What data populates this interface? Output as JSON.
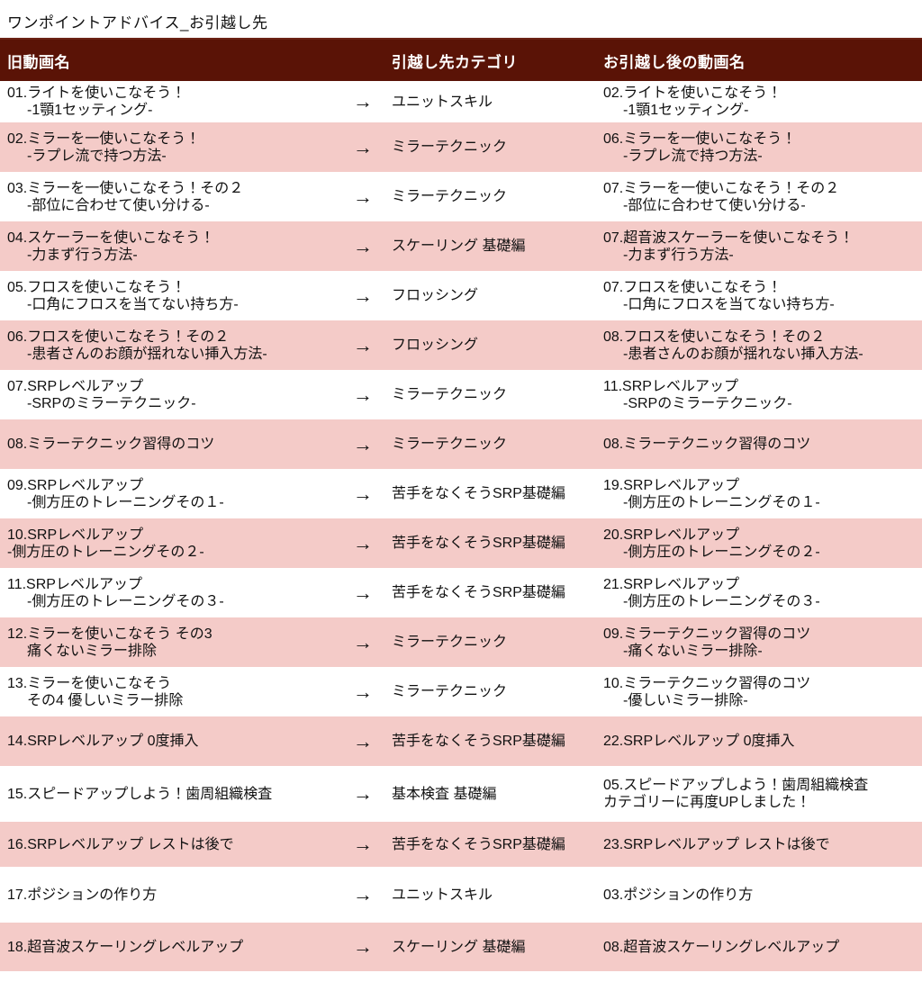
{
  "page": {
    "title": "ワンポイントアドバイス_お引越し先"
  },
  "colors": {
    "header_bg": "#5A1306",
    "header_text": "#FFFFFF",
    "row_alt_bg": "#F4CBC8",
    "body_text": "#111111"
  },
  "table": {
    "arrow_glyph": "→",
    "headers": {
      "old": "旧動画名",
      "category": "引越し先カテゴリ",
      "new": "お引越し後の動画名"
    },
    "rows": [
      {
        "old": [
          {
            "t": "01.ライトを使いこなそう！"
          },
          {
            "t": "-1顎1セッティング-",
            "i": true
          }
        ],
        "category": "ユニットスキル",
        "new": [
          {
            "t": "02.ライトを使いこなそう！"
          },
          {
            "t": "-1顎1セッティング-",
            "i": true
          }
        ]
      },
      {
        "old": [
          {
            "t": "02.ミラーを一使いこなそう！"
          },
          {
            "t": "-ラプレ流で持つ方法-",
            "i": true
          }
        ],
        "category": "ミラーテクニック",
        "new": [
          {
            "t": "06.ミラーを一使いこなそう！"
          },
          {
            "t": "-ラプレ流で持つ方法-",
            "i": true
          }
        ]
      },
      {
        "old": [
          {
            "t": "03.ミラーを一使いこなそう！その２"
          },
          {
            "t": "-部位に合わせて使い分ける-",
            "i": true
          }
        ],
        "category": "ミラーテクニック",
        "new": [
          {
            "t": "07.ミラーを一使いこなそう！その２"
          },
          {
            "t": "-部位に合わせて使い分ける-",
            "i": true
          }
        ]
      },
      {
        "old": [
          {
            "t": "04.スケーラーを使いこなそう！"
          },
          {
            "t": "-力まず行う方法-",
            "i": true
          }
        ],
        "category": "スケーリング 基礎編",
        "new": [
          {
            "t": "07.超音波スケーラーを使いこなそう！"
          },
          {
            "t": "-力まず行う方法-",
            "i": true
          }
        ]
      },
      {
        "old": [
          {
            "t": "05.フロスを使いこなそう！"
          },
          {
            "t": "-口角にフロスを当てない持ち方-",
            "i": true
          }
        ],
        "category": "フロッシング",
        "new": [
          {
            "t": "07.フロスを使いこなそう！"
          },
          {
            "t": "-口角にフロスを当てない持ち方-",
            "i": true
          }
        ]
      },
      {
        "old": [
          {
            "t": "06.フロスを使いこなそう！その２"
          },
          {
            "t": "-患者さんのお顔が揺れない挿入方法-",
            "i": true
          }
        ],
        "category": "フロッシング",
        "new": [
          {
            "t": "08.フロスを使いこなそう！その２"
          },
          {
            "t": "-患者さんのお顔が揺れない挿入方法-",
            "i": true
          }
        ]
      },
      {
        "old": [
          {
            "t": "07.SRPレベルアップ"
          },
          {
            "t": "-SRPのミラーテクニック-",
            "i": true
          }
        ],
        "category": "ミラーテクニック",
        "new": [
          {
            "t": "11.SRPレベルアップ"
          },
          {
            "t": "-SRPのミラーテクニック-",
            "i": true
          }
        ]
      },
      {
        "old": [
          {
            "t": "08.ミラーテクニック習得のコツ"
          }
        ],
        "category": "ミラーテクニック",
        "new": [
          {
            "t": "08.ミラーテクニック習得のコツ"
          }
        ]
      },
      {
        "old": [
          {
            "t": "09.SRPレベルアップ"
          },
          {
            "t": "-側方圧のトレーニングその１-",
            "i": true
          }
        ],
        "category": "苦手をなくそうSRP基礎編",
        "new": [
          {
            "t": "19.SRPレベルアップ"
          },
          {
            "t": "-側方圧のトレーニングその１-",
            "i": true
          }
        ]
      },
      {
        "old": [
          {
            "t": "10.SRPレベルアップ"
          },
          {
            "t": "-側方圧のトレーニングその２-"
          }
        ],
        "category": "苦手をなくそうSRP基礎編",
        "new": [
          {
            "t": "20.SRPレベルアップ"
          },
          {
            "t": "-側方圧のトレーニングその２-",
            "i": true
          }
        ]
      },
      {
        "old": [
          {
            "t": "11.SRPレベルアップ"
          },
          {
            "t": "-側方圧のトレーニングその３-",
            "i": true
          }
        ],
        "category": "苦手をなくそうSRP基礎編",
        "new": [
          {
            "t": "21.SRPレベルアップ"
          },
          {
            "t": "-側方圧のトレーニングその３-",
            "i": true
          }
        ]
      },
      {
        "old": [
          {
            "t": "12.ミラーを使いこなそう その3"
          },
          {
            "t": "痛くないミラー排除",
            "i": true
          }
        ],
        "category": "ミラーテクニック",
        "new": [
          {
            "t": "09.ミラーテクニック習得のコツ"
          },
          {
            "t": "-痛くないミラー排除-",
            "i": true
          }
        ]
      },
      {
        "old": [
          {
            "t": "13.ミラーを使いこなそう"
          },
          {
            "t": "その4 優しいミラー排除",
            "i": true
          }
        ],
        "category": "ミラーテクニック",
        "new": [
          {
            "t": "10.ミラーテクニック習得のコツ"
          },
          {
            "t": "-優しいミラー排除-",
            "i": true
          }
        ]
      },
      {
        "old": [
          {
            "t": "14.SRPレベルアップ 0度挿入"
          }
        ],
        "category": "苦手をなくそうSRP基礎編",
        "new": [
          {
            "t": "22.SRPレベルアップ 0度挿入"
          }
        ]
      },
      {
        "old": [
          {
            "t": "15.スピードアップしよう！歯周組織検査"
          }
        ],
        "category": "基本検査 基礎編",
        "new": [
          {
            "t": "05.スピードアップしよう！歯周組織検査"
          },
          {
            "t": "カテゴリーに再度UPしました！"
          }
        ]
      },
      {
        "old": [
          {
            "t": "16.SRPレベルアップ レストは後で"
          }
        ],
        "category": "苦手をなくそうSRP基礎編",
        "new": [
          {
            "t": "23.SRPレベルアップ レストは後で"
          }
        ]
      },
      {
        "old": [
          {
            "t": "17.ポジションの作り方"
          }
        ],
        "category": "ユニットスキル",
        "new": [
          {
            "t": "03.ポジションの作り方"
          }
        ]
      },
      {
        "old": [
          {
            "t": "18.超音波スケーリングレベルアップ"
          }
        ],
        "category": "スケーリング 基礎編",
        "new": [
          {
            "t": "08.超音波スケーリングレベルアップ"
          }
        ]
      }
    ]
  }
}
